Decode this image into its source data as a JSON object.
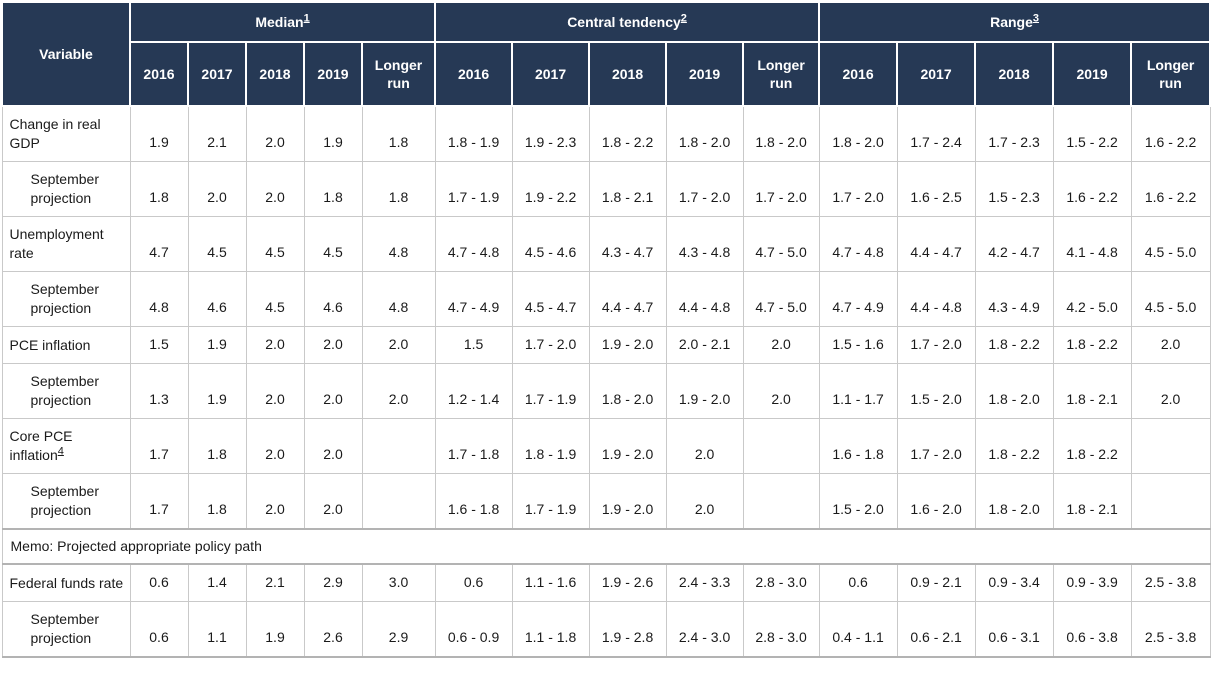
{
  "table": {
    "corner_label": "Variable",
    "col_groups": [
      {
        "label": "Median",
        "footnote": "1"
      },
      {
        "label": "Central tendency",
        "footnote": "2"
      },
      {
        "label": "Range",
        "footnote": "3"
      }
    ],
    "year_headers": [
      "2016",
      "2017",
      "2018",
      "2019",
      "Longer run"
    ],
    "rows": [
      {
        "label": "Change in real GDP",
        "indent": false,
        "median": [
          "1.9",
          "2.1",
          "2.0",
          "1.9",
          "1.8"
        ],
        "central_tendency": [
          "1.8 - 1.9",
          "1.9 - 2.3",
          "1.8 - 2.2",
          "1.8 - 2.0",
          "1.8 - 2.0"
        ],
        "range": [
          "1.8 - 2.0",
          "1.7 - 2.4",
          "1.7 - 2.3",
          "1.5 - 2.2",
          "1.6 - 2.2"
        ]
      },
      {
        "label": "September projection",
        "indent": true,
        "median": [
          "1.8",
          "2.0",
          "2.0",
          "1.8",
          "1.8"
        ],
        "central_tendency": [
          "1.7 - 1.9",
          "1.9 - 2.2",
          "1.8 - 2.1",
          "1.7 - 2.0",
          "1.7 - 2.0"
        ],
        "range": [
          "1.7 - 2.0",
          "1.6 - 2.5",
          "1.5 - 2.3",
          "1.6 - 2.2",
          "1.6 - 2.2"
        ]
      },
      {
        "label": "Unemployment rate",
        "indent": false,
        "median": [
          "4.7",
          "4.5",
          "4.5",
          "4.5",
          "4.8"
        ],
        "central_tendency": [
          "4.7 - 4.8",
          "4.5 - 4.6",
          "4.3 - 4.7",
          "4.3 - 4.8",
          "4.7 - 5.0"
        ],
        "range": [
          "4.7 - 4.8",
          "4.4 - 4.7",
          "4.2 - 4.7",
          "4.1 - 4.8",
          "4.5 - 5.0"
        ]
      },
      {
        "label": "September projection",
        "indent": true,
        "median": [
          "4.8",
          "4.6",
          "4.5",
          "4.6",
          "4.8"
        ],
        "central_tendency": [
          "4.7 - 4.9",
          "4.5 - 4.7",
          "4.4 - 4.7",
          "4.4 - 4.8",
          "4.7 - 5.0"
        ],
        "range": [
          "4.7 - 4.9",
          "4.4 - 4.8",
          "4.3 - 4.9",
          "4.2 - 5.0",
          "4.5 - 5.0"
        ]
      },
      {
        "label": "PCE inflation",
        "indent": false,
        "median": [
          "1.5",
          "1.9",
          "2.0",
          "2.0",
          "2.0"
        ],
        "central_tendency": [
          "1.5",
          "1.7 - 2.0",
          "1.9 - 2.0",
          "2.0 - 2.1",
          "2.0"
        ],
        "range": [
          "1.5 - 1.6",
          "1.7 - 2.0",
          "1.8 - 2.2",
          "1.8 - 2.2",
          "2.0"
        ]
      },
      {
        "label": "September projection",
        "indent": true,
        "median": [
          "1.3",
          "1.9",
          "2.0",
          "2.0",
          "2.0"
        ],
        "central_tendency": [
          "1.2 - 1.4",
          "1.7 - 1.9",
          "1.8 - 2.0",
          "1.9 - 2.0",
          "2.0"
        ],
        "range": [
          "1.1 - 1.7",
          "1.5 - 2.0",
          "1.8 - 2.0",
          "1.8 - 2.1",
          "2.0"
        ]
      },
      {
        "label": "Core PCE inflation",
        "footnote": "4",
        "indent": false,
        "median": [
          "1.7",
          "1.8",
          "2.0",
          "2.0",
          ""
        ],
        "central_tendency": [
          "1.7 - 1.8",
          "1.8 - 1.9",
          "1.9 - 2.0",
          "2.0",
          ""
        ],
        "range": [
          "1.6 - 1.8",
          "1.7 - 2.0",
          "1.8 - 2.2",
          "1.8 - 2.2",
          ""
        ]
      },
      {
        "label": "September projection",
        "indent": true,
        "median": [
          "1.7",
          "1.8",
          "2.0",
          "2.0",
          ""
        ],
        "central_tendency": [
          "1.6 - 1.8",
          "1.7 - 1.9",
          "1.9 - 2.0",
          "2.0",
          ""
        ],
        "range": [
          "1.5 - 2.0",
          "1.6 - 2.0",
          "1.8 - 2.0",
          "1.8 - 2.1",
          ""
        ]
      },
      {
        "memo": true,
        "label": "Memo: Projected appropriate policy path"
      },
      {
        "label": "Federal funds rate",
        "indent": false,
        "median": [
          "0.6",
          "1.4",
          "2.1",
          "2.9",
          "3.0"
        ],
        "central_tendency": [
          "0.6",
          "1.1 - 1.6",
          "1.9 - 2.6",
          "2.4 - 3.3",
          "2.8 - 3.0"
        ],
        "range": [
          "0.6",
          "0.9 - 2.1",
          "0.9 - 3.4",
          "0.9 - 3.9",
          "2.5 - 3.8"
        ]
      },
      {
        "label": "September projection",
        "indent": true,
        "median": [
          "0.6",
          "1.1",
          "1.9",
          "2.6",
          "2.9"
        ],
        "central_tendency": [
          "0.6 - 0.9",
          "1.1 - 1.8",
          "1.9 - 2.8",
          "2.4 - 3.0",
          "2.8 - 3.0"
        ],
        "range": [
          "0.4 - 1.1",
          "0.6 - 2.1",
          "0.6 - 3.1",
          "0.6 - 3.8",
          "2.5 - 3.8"
        ]
      }
    ],
    "colors": {
      "header_bg": "#263955",
      "header_text": "#ffffff",
      "body_text": "#1a1a1a",
      "grid_line": "#c9c9c9",
      "heavy_line": "#b3b3b3"
    }
  }
}
